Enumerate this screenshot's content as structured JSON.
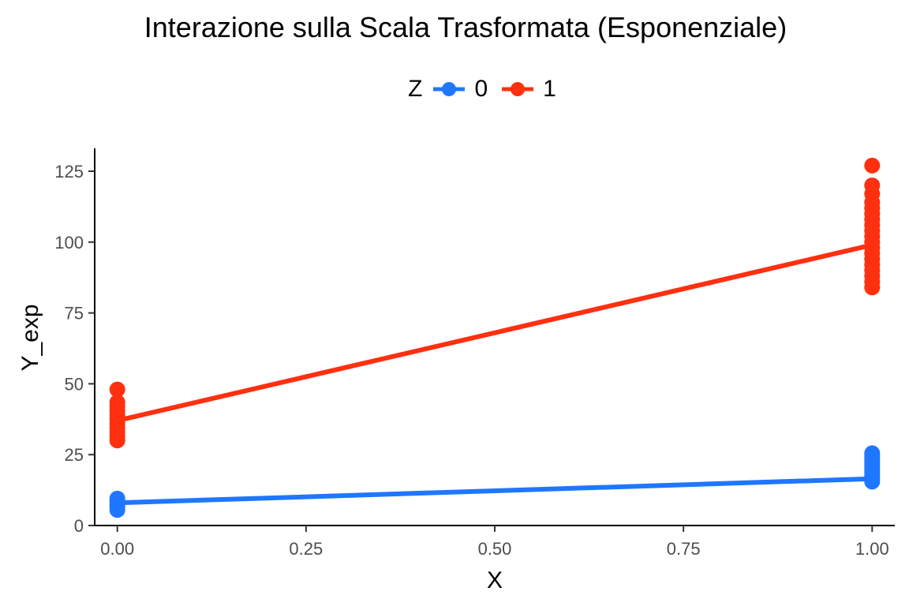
{
  "chart_data": {
    "type": "line",
    "title": "Interazione sulla Scala Trasformata (Esponenziale)",
    "xlabel": "X",
    "ylabel": "Y_exp",
    "xlim": [
      -0.03,
      1.03
    ],
    "ylim": [
      0,
      125
    ],
    "xticks": [
      "0.00",
      "0.25",
      "0.50",
      "0.75",
      "1.00"
    ],
    "yticks": [
      "0",
      "25",
      "50",
      "75",
      "100",
      "125"
    ],
    "grid": false,
    "legend": {
      "title": "Z",
      "position": "top"
    },
    "series": [
      {
        "name": "0",
        "color": "#1F77FF",
        "line": [
          {
            "x": 0,
            "y": 8
          },
          {
            "x": 1,
            "y": 16.5
          }
        ],
        "points": [
          {
            "x": 0,
            "y": 5.5
          },
          {
            "x": 0,
            "y": 6.5
          },
          {
            "x": 0,
            "y": 7.2
          },
          {
            "x": 0,
            "y": 8
          },
          {
            "x": 0,
            "y": 8.8
          },
          {
            "x": 0,
            "y": 9.5
          },
          {
            "x": 1,
            "y": 15.5
          },
          {
            "x": 1,
            "y": 16.5
          },
          {
            "x": 1,
            "y": 17.5
          },
          {
            "x": 1,
            "y": 18.5
          },
          {
            "x": 1,
            "y": 19.5
          },
          {
            "x": 1,
            "y": 20.5
          },
          {
            "x": 1,
            "y": 21.5
          },
          {
            "x": 1,
            "y": 22.5
          },
          {
            "x": 1,
            "y": 23.5
          },
          {
            "x": 1,
            "y": 24.5
          },
          {
            "x": 1,
            "y": 25.5
          }
        ]
      },
      {
        "name": "1",
        "color": "#FF3010",
        "line": [
          {
            "x": 0,
            "y": 37
          },
          {
            "x": 1,
            "y": 99
          }
        ],
        "points": [
          {
            "x": 0,
            "y": 30
          },
          {
            "x": 0,
            "y": 31.5
          },
          {
            "x": 0,
            "y": 33
          },
          {
            "x": 0,
            "y": 34.5
          },
          {
            "x": 0,
            "y": 36
          },
          {
            "x": 0,
            "y": 37.5
          },
          {
            "x": 0,
            "y": 39
          },
          {
            "x": 0,
            "y": 40.5
          },
          {
            "x": 0,
            "y": 42
          },
          {
            "x": 0,
            "y": 43.5
          },
          {
            "x": 0,
            "y": 48
          },
          {
            "x": 1,
            "y": 84
          },
          {
            "x": 1,
            "y": 86
          },
          {
            "x": 1,
            "y": 88
          },
          {
            "x": 1,
            "y": 90
          },
          {
            "x": 1,
            "y": 92
          },
          {
            "x": 1,
            "y": 94
          },
          {
            "x": 1,
            "y": 96
          },
          {
            "x": 1,
            "y": 98
          },
          {
            "x": 1,
            "y": 100
          },
          {
            "x": 1,
            "y": 102
          },
          {
            "x": 1,
            "y": 104
          },
          {
            "x": 1,
            "y": 106
          },
          {
            "x": 1,
            "y": 108
          },
          {
            "x": 1,
            "y": 110
          },
          {
            "x": 1,
            "y": 112
          },
          {
            "x": 1,
            "y": 114
          },
          {
            "x": 1,
            "y": 117
          },
          {
            "x": 1,
            "y": 120
          },
          {
            "x": 1,
            "y": 127
          }
        ]
      }
    ]
  }
}
